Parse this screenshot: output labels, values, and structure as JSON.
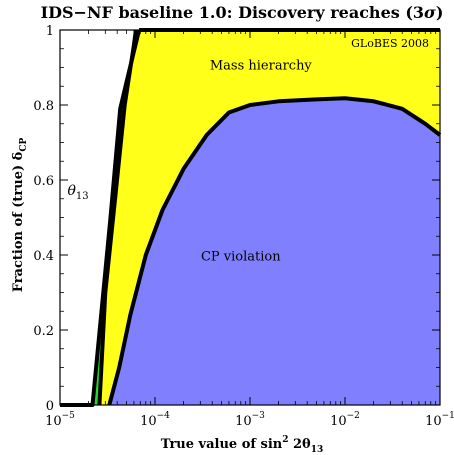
{
  "chart_data": {
    "type": "area",
    "title": "IDS−NF baseline 1.0: Discovery reaches (3σ)",
    "title_parts": {
      "main": "IDS−NF baseline 1.0: Discovery reaches (3",
      "sigma": "σ",
      "close": ")"
    },
    "watermark": "GLoBES 2008",
    "xlabel": {
      "prefix": "True value of sin",
      "sup": "2",
      "middle": " 2θ",
      "sub": "13"
    },
    "ylabel": {
      "prefix": "Fraction of (true) δ",
      "sub": "CP"
    },
    "x_scale": "log",
    "xlim": [
      1e-05,
      0.1
    ],
    "ylim": [
      0,
      1
    ],
    "x_ticks": [
      {
        "value": 1e-05,
        "base": "10",
        "exp": "−5"
      },
      {
        "value": 0.0001,
        "base": "10",
        "exp": "−4"
      },
      {
        "value": 0.001,
        "base": "10",
        "exp": "−3"
      },
      {
        "value": 0.01,
        "base": "10",
        "exp": "−2"
      },
      {
        "value": 0.1,
        "base": "10",
        "exp": "−1"
      }
    ],
    "y_ticks": [
      {
        "value": 0,
        "label": "0"
      },
      {
        "value": 0.2,
        "label": "0.2"
      },
      {
        "value": 0.4,
        "label": "0.4"
      },
      {
        "value": 0.6,
        "label": "0.6"
      },
      {
        "value": 0.8,
        "label": "0.8"
      },
      {
        "value": 1,
        "label": "1"
      }
    ],
    "series": [
      {
        "name": "θ13",
        "label": {
          "prefix": "θ",
          "sub": "13"
        },
        "color": "#22dd22",
        "right_edge": [
          [
            2.2e-05,
            0
          ],
          [
            3.4e-05,
            0.5
          ],
          [
            4.3e-05,
            0.79
          ],
          [
            5e-05,
            0.86
          ],
          [
            6.8e-05,
            1.0
          ]
        ],
        "left_edge": [
          [
            2.6e-05,
            0
          ],
          [
            3e-05,
            0.3
          ],
          [
            3.8e-05,
            0.55
          ],
          [
            4.8e-05,
            0.8
          ],
          [
            6e-05,
            0.96
          ],
          [
            6.3e-05,
            1.0
          ]
        ]
      },
      {
        "name": "Mass hierarchy",
        "label": "Mass hierarchy",
        "color": "#ffff1a",
        "left_edge": [
          [
            2.6e-05,
            0
          ],
          [
            3e-05,
            0.3
          ],
          [
            3.8e-05,
            0.55
          ],
          [
            4.8e-05,
            0.8
          ],
          [
            6e-05,
            0.96
          ],
          [
            6.3e-05,
            1.0
          ]
        ]
      },
      {
        "name": "CP violation",
        "label": "CP violation",
        "color": "#8080ff",
        "boundary": [
          [
            3.3e-05,
            0
          ],
          [
            4.2e-05,
            0.1
          ],
          [
            5.5e-05,
            0.24
          ],
          [
            8e-05,
            0.4
          ],
          [
            0.00012,
            0.52
          ],
          [
            0.0002,
            0.63
          ],
          [
            0.00035,
            0.72
          ],
          [
            0.0006,
            0.78
          ],
          [
            0.001,
            0.8
          ],
          [
            0.002,
            0.81
          ],
          [
            0.005,
            0.815
          ],
          [
            0.01,
            0.818
          ],
          [
            0.02,
            0.81
          ],
          [
            0.04,
            0.79
          ],
          [
            0.07,
            0.75
          ],
          [
            0.1,
            0.72
          ]
        ]
      }
    ]
  }
}
